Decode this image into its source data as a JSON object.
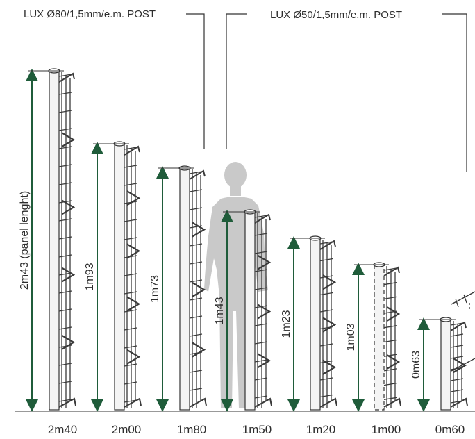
{
  "callouts": {
    "left": "LUX Ø80/1,5mm/e.m. POST",
    "right": "LUX Ø50/1,5mm/e.m. POST"
  },
  "colors": {
    "accent": "#1f5c3a",
    "post": "#f4f4f4",
    "outline": "#333333",
    "silhouette": "#c9c9c9"
  },
  "icons": {
    "person": "person-silhouette-icon",
    "arrow": "double-arrow-icon"
  },
  "fences": [
    {
      "height_label": "2m40",
      "panel_label": "2m43 (panel lenght)"
    },
    {
      "height_label": "2m00",
      "panel_label": "1m93"
    },
    {
      "height_label": "1m80",
      "panel_label": "1m73"
    },
    {
      "height_label": "1m50",
      "panel_label": "1m43"
    },
    {
      "height_label": "1m20",
      "panel_label": "1m23"
    },
    {
      "height_label": "1m00",
      "panel_label": "1m03"
    },
    {
      "height_label": "0m60",
      "panel_label": "0m63"
    }
  ]
}
